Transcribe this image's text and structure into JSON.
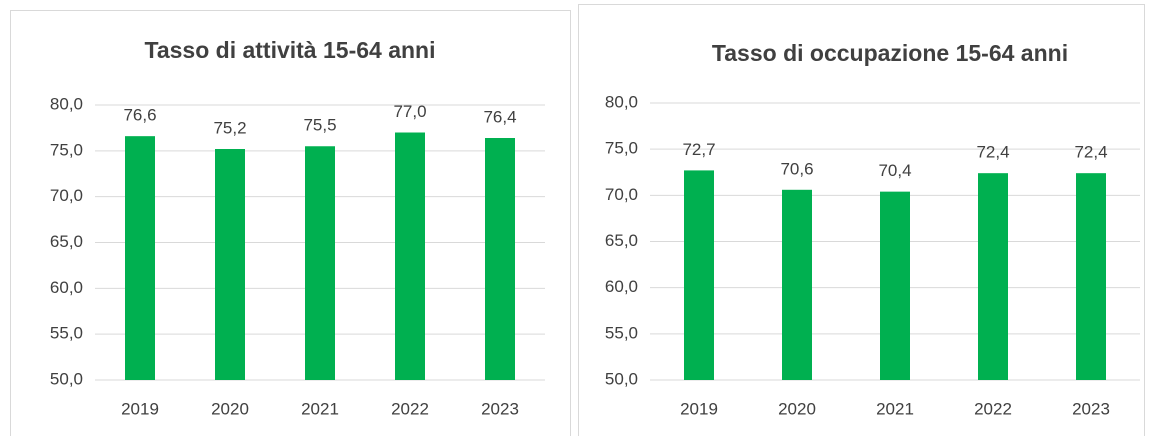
{
  "chart_data": [
    {
      "type": "bar",
      "title": "Tasso di attività 15-64 anni",
      "categories": [
        "2019",
        "2020",
        "2021",
        "2022",
        "2023"
      ],
      "values": [
        76.6,
        75.2,
        75.5,
        77.0,
        76.4
      ],
      "value_labels": [
        "76,6",
        "75,2",
        "75,5",
        "77,0",
        "76,4"
      ],
      "color": "#00b050",
      "ylim": [
        50,
        80
      ],
      "yticks": [
        {
          "value": 50,
          "label": "50,0"
        },
        {
          "value": 55,
          "label": "55,0"
        },
        {
          "value": 60,
          "label": "60,0"
        },
        {
          "value": 65,
          "label": "65,0"
        },
        {
          "value": 70,
          "label": "70,0"
        },
        {
          "value": 75,
          "label": "75,0"
        },
        {
          "value": 80,
          "label": "80,0"
        }
      ],
      "grid": true
    },
    {
      "type": "bar",
      "title": "Tasso di occupazione 15-64 anni",
      "categories": [
        "2019",
        "2020",
        "2021",
        "2022",
        "2023"
      ],
      "values": [
        72.7,
        70.6,
        70.4,
        72.4,
        72.4
      ],
      "value_labels": [
        "72,7",
        "70,6",
        "70,4",
        "72,4",
        "72,4"
      ],
      "color": "#00b050",
      "ylim": [
        50,
        80
      ],
      "yticks": [
        {
          "value": 50,
          "label": "50,0"
        },
        {
          "value": 55,
          "label": "55,0"
        },
        {
          "value": 60,
          "label": "60,0"
        },
        {
          "value": 65,
          "label": "65,0"
        },
        {
          "value": 70,
          "label": "70,0"
        },
        {
          "value": 75,
          "label": "75,0"
        },
        {
          "value": 80,
          "label": "80,0"
        }
      ],
      "grid": true
    }
  ]
}
